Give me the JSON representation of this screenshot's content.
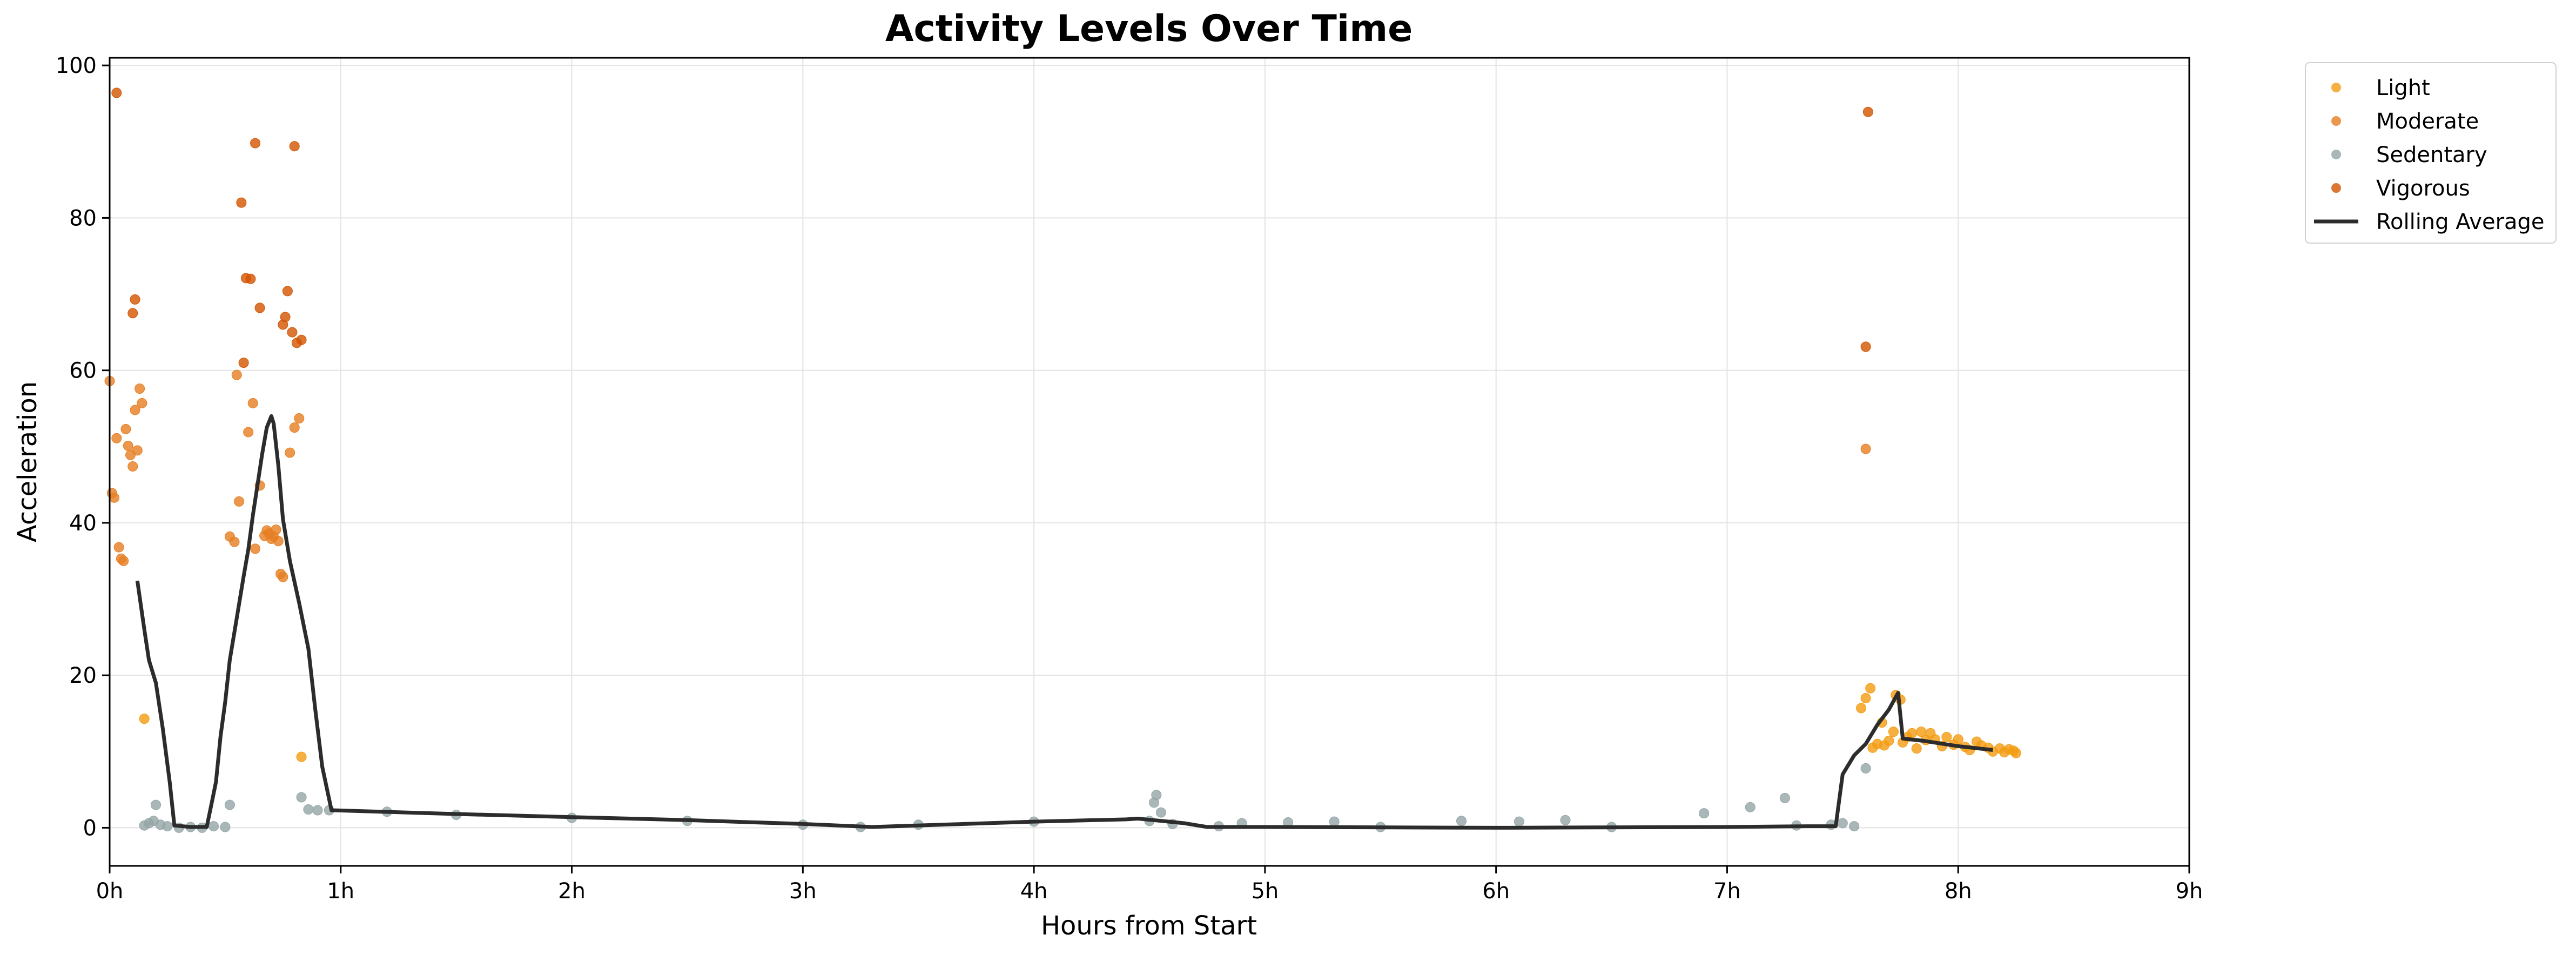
{
  "chart_data": {
    "type": "scatter",
    "title": "Activity Levels Over Time",
    "xlabel": "Hours from Start",
    "ylabel": "Acceleration",
    "xlim": [
      0,
      9
    ],
    "ylim": [
      -5,
      101
    ],
    "x_ticks": [
      0,
      1,
      2,
      3,
      4,
      5,
      6,
      7,
      8,
      9
    ],
    "x_tick_labels": [
      "0h",
      "1h",
      "2h",
      "3h",
      "4h",
      "5h",
      "6h",
      "7h",
      "8h",
      "9h"
    ],
    "y_ticks": [
      0,
      20,
      40,
      60,
      80,
      100
    ],
    "y_tick_labels": [
      "0",
      "20",
      "40",
      "60",
      "80",
      "100"
    ],
    "grid": true,
    "legend_position": "outside-top-right",
    "series": [
      {
        "name": "Light",
        "kind": "scatter",
        "color": "#f39c12",
        "points": [
          [
            0.15,
            14.3
          ],
          [
            0.83,
            9.3
          ],
          [
            7.58,
            15.7
          ],
          [
            7.6,
            17.0
          ],
          [
            7.62,
            18.3
          ],
          [
            7.63,
            10.5
          ],
          [
            7.65,
            11.0
          ],
          [
            7.67,
            13.8
          ],
          [
            7.68,
            10.8
          ],
          [
            7.7,
            11.4
          ],
          [
            7.72,
            12.6
          ],
          [
            7.73,
            17.4
          ],
          [
            7.75,
            16.8
          ],
          [
            7.76,
            11.2
          ],
          [
            7.78,
            11.9
          ],
          [
            7.8,
            12.4
          ],
          [
            7.82,
            10.4
          ],
          [
            7.84,
            12.6
          ],
          [
            7.86,
            11.5
          ],
          [
            7.88,
            12.4
          ],
          [
            7.9,
            11.6
          ],
          [
            7.93,
            10.7
          ],
          [
            7.95,
            11.9
          ],
          [
            7.98,
            10.9
          ],
          [
            8.0,
            11.6
          ],
          [
            8.03,
            10.6
          ],
          [
            8.05,
            10.2
          ],
          [
            8.08,
            11.3
          ],
          [
            8.1,
            10.8
          ],
          [
            8.13,
            10.5
          ],
          [
            8.15,
            10.0
          ],
          [
            8.18,
            10.4
          ],
          [
            8.2,
            9.9
          ],
          [
            8.22,
            10.3
          ],
          [
            8.24,
            10.1
          ],
          [
            8.25,
            9.8
          ]
        ]
      },
      {
        "name": "Moderate",
        "kind": "scatter",
        "color": "#e67e22",
        "points": [
          [
            0.0,
            58.6
          ],
          [
            0.01,
            43.9
          ],
          [
            0.02,
            43.3
          ],
          [
            0.03,
            51.1
          ],
          [
            0.04,
            36.8
          ],
          [
            0.05,
            35.3
          ],
          [
            0.06,
            35.0
          ],
          [
            0.07,
            52.3
          ],
          [
            0.08,
            50.1
          ],
          [
            0.09,
            48.9
          ],
          [
            0.1,
            47.4
          ],
          [
            0.11,
            54.8
          ],
          [
            0.12,
            49.5
          ],
          [
            0.13,
            57.6
          ],
          [
            0.14,
            55.7
          ],
          [
            0.52,
            38.2
          ],
          [
            0.54,
            37.5
          ],
          [
            0.55,
            59.4
          ],
          [
            0.56,
            42.8
          ],
          [
            0.6,
            51.9
          ],
          [
            0.62,
            55.7
          ],
          [
            0.63,
            36.6
          ],
          [
            0.65,
            44.9
          ],
          [
            0.67,
            38.3
          ],
          [
            0.68,
            39.0
          ],
          [
            0.69,
            38.6
          ],
          [
            0.7,
            37.9
          ],
          [
            0.71,
            38.2
          ],
          [
            0.72,
            39.1
          ],
          [
            0.73,
            37.6
          ],
          [
            0.74,
            33.3
          ],
          [
            0.75,
            32.9
          ],
          [
            0.78,
            49.2
          ],
          [
            0.8,
            52.5
          ],
          [
            0.82,
            53.7
          ],
          [
            7.6,
            49.7
          ]
        ]
      },
      {
        "name": "Sedentary",
        "kind": "scatter",
        "color": "#95a5a6",
        "points": [
          [
            0.15,
            0.3
          ],
          [
            0.17,
            0.6
          ],
          [
            0.19,
            0.9
          ],
          [
            0.2,
            3.0
          ],
          [
            0.22,
            0.4
          ],
          [
            0.25,
            0.2
          ],
          [
            0.3,
            0.0
          ],
          [
            0.35,
            0.1
          ],
          [
            0.4,
            0.0
          ],
          [
            0.45,
            0.2
          ],
          [
            0.5,
            0.1
          ],
          [
            0.52,
            3.0
          ],
          [
            0.83,
            4.0
          ],
          [
            0.86,
            2.4
          ],
          [
            0.9,
            2.3
          ],
          [
            0.95,
            2.3
          ],
          [
            1.2,
            2.1
          ],
          [
            1.5,
            1.7
          ],
          [
            2.0,
            1.3
          ],
          [
            2.5,
            0.9
          ],
          [
            3.0,
            0.4
          ],
          [
            3.25,
            0.1
          ],
          [
            3.5,
            0.4
          ],
          [
            4.0,
            0.8
          ],
          [
            4.5,
            0.9
          ],
          [
            4.52,
            3.3
          ],
          [
            4.53,
            4.3
          ],
          [
            4.55,
            2.0
          ],
          [
            4.6,
            0.5
          ],
          [
            4.8,
            0.2
          ],
          [
            4.9,
            0.6
          ],
          [
            5.1,
            0.7
          ],
          [
            5.3,
            0.8
          ],
          [
            5.5,
            0.1
          ],
          [
            5.85,
            0.9
          ],
          [
            6.1,
            0.8
          ],
          [
            6.3,
            1.0
          ],
          [
            6.5,
            0.1
          ],
          [
            6.9,
            1.9
          ],
          [
            7.1,
            2.7
          ],
          [
            7.25,
            3.9
          ],
          [
            7.3,
            0.3
          ],
          [
            7.45,
            0.4
          ],
          [
            7.5,
            0.6
          ],
          [
            7.55,
            0.2
          ],
          [
            7.6,
            7.8
          ]
        ]
      },
      {
        "name": "Vigorous",
        "kind": "scatter",
        "color": "#d35400",
        "points": [
          [
            0.03,
            96.4
          ],
          [
            0.1,
            67.5
          ],
          [
            0.11,
            69.3
          ],
          [
            0.57,
            82.0
          ],
          [
            0.58,
            61.0
          ],
          [
            0.59,
            72.1
          ],
          [
            0.61,
            72.0
          ],
          [
            0.63,
            89.8
          ],
          [
            0.65,
            68.2
          ],
          [
            0.75,
            66.0
          ],
          [
            0.76,
            67.0
          ],
          [
            0.77,
            70.4
          ],
          [
            0.79,
            65.0
          ],
          [
            0.8,
            89.4
          ],
          [
            0.81,
            63.6
          ],
          [
            0.83,
            64.0
          ],
          [
            7.6,
            63.1
          ],
          [
            7.61,
            93.9
          ]
        ]
      },
      {
        "name": "Rolling Average",
        "kind": "line",
        "color": "#2c2c2c",
        "points": [
          [
            0.12,
            32.4
          ],
          [
            0.15,
            26.0
          ],
          [
            0.17,
            22.0
          ],
          [
            0.2,
            19.0
          ],
          [
            0.23,
            13.0
          ],
          [
            0.26,
            6.0
          ],
          [
            0.28,
            0.3
          ],
          [
            0.35,
            0.1
          ],
          [
            0.42,
            0.1
          ],
          [
            0.44,
            3.0
          ],
          [
            0.46,
            6.0
          ],
          [
            0.48,
            12.0
          ],
          [
            0.5,
            16.5
          ],
          [
            0.52,
            22.0
          ],
          [
            0.55,
            27.5
          ],
          [
            0.58,
            33.0
          ],
          [
            0.6,
            36.5
          ],
          [
            0.62,
            41.0
          ],
          [
            0.64,
            45.0
          ],
          [
            0.66,
            49.0
          ],
          [
            0.68,
            52.5
          ],
          [
            0.7,
            54.0
          ],
          [
            0.71,
            53.0
          ],
          [
            0.73,
            47.5
          ],
          [
            0.75,
            40.5
          ],
          [
            0.78,
            35.0
          ],
          [
            0.82,
            29.5
          ],
          [
            0.86,
            23.5
          ],
          [
            0.89,
            15.5
          ],
          [
            0.92,
            8.0
          ],
          [
            0.96,
            2.3
          ],
          [
            1.5,
            1.8
          ],
          [
            2.0,
            1.4
          ],
          [
            2.5,
            1.0
          ],
          [
            3.0,
            0.5
          ],
          [
            3.3,
            0.1
          ],
          [
            3.6,
            0.4
          ],
          [
            4.0,
            0.8
          ],
          [
            4.4,
            1.1
          ],
          [
            4.45,
            1.2
          ],
          [
            4.55,
            0.9
          ],
          [
            4.65,
            0.6
          ],
          [
            4.75,
            0.1
          ],
          [
            5.0,
            0.1
          ],
          [
            6.0,
            0.0
          ],
          [
            7.0,
            0.1
          ],
          [
            7.35,
            0.2
          ],
          [
            7.47,
            0.2
          ],
          [
            7.5,
            7.0
          ],
          [
            7.55,
            9.5
          ],
          [
            7.6,
            11.0
          ],
          [
            7.65,
            13.5
          ],
          [
            7.7,
            15.5
          ],
          [
            7.74,
            17.7
          ],
          [
            7.76,
            11.7
          ],
          [
            7.85,
            11.4
          ],
          [
            8.0,
            10.7
          ],
          [
            8.15,
            10.2
          ]
        ]
      }
    ]
  }
}
